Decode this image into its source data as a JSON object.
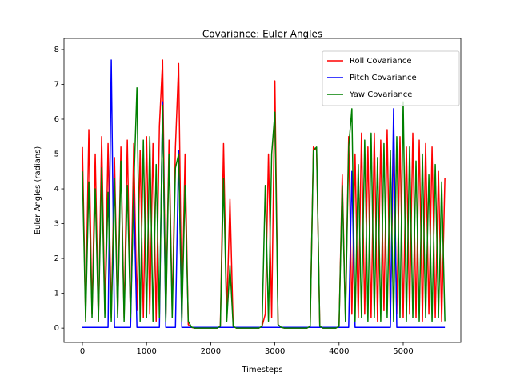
{
  "chart_data": {
    "type": "line",
    "title": "Covariance: Euler Angles",
    "xlabel": "Timesteps",
    "ylabel": "Euler Angles (radians)",
    "x": [
      0,
      50,
      100,
      150,
      200,
      250,
      300,
      350,
      400,
      450,
      500,
      550,
      600,
      650,
      700,
      750,
      800,
      850,
      900,
      950,
      1000,
      1050,
      1100,
      1150,
      1200,
      1250,
      1300,
      1350,
      1400,
      1450,
      1500,
      1550,
      1600,
      1650,
      1700,
      1750,
      1800,
      1850,
      1900,
      1950,
      2000,
      2050,
      2100,
      2150,
      2200,
      2250,
      2300,
      2350,
      2400,
      2450,
      2500,
      2550,
      2600,
      2650,
      2700,
      2750,
      2800,
      2850,
      2900,
      2950,
      3000,
      3050,
      3100,
      3150,
      3200,
      3250,
      3300,
      3350,
      3400,
      3450,
      3500,
      3550,
      3600,
      3650,
      3700,
      3750,
      3800,
      3850,
      3900,
      3950,
      4000,
      4050,
      4100,
      4150,
      4200,
      4250,
      4300,
      4350,
      4400,
      4450,
      4500,
      4550,
      4600,
      4650,
      4700,
      4750,
      4800,
      4850,
      4900,
      4950,
      5000,
      5050,
      5100,
      5150,
      5200,
      5250,
      5300,
      5350,
      5400,
      5450,
      5500,
      5550,
      5600,
      5650
    ],
    "series": [
      {
        "name": "Roll Covariance",
        "color": "#ff0000",
        "values": [
          5.2,
          0.3,
          5.7,
          0.4,
          5.0,
          0.2,
          5.5,
          0.5,
          5.3,
          0.3,
          4.9,
          0.4,
          5.2,
          0.3,
          5.4,
          0.2,
          5.3,
          0.5,
          5.1,
          0.3,
          5.5,
          0.4,
          5.3,
          0.2,
          5.8,
          7.7,
          0.3,
          5.4,
          0.5,
          5.2,
          7.6,
          0.3,
          5.0,
          0.1,
          0.02,
          0,
          0,
          0,
          0,
          0,
          0,
          0,
          0,
          0.05,
          5.3,
          0.4,
          3.7,
          0.05,
          0,
          0,
          0,
          0,
          0,
          0,
          0,
          0,
          0.05,
          0.4,
          5.0,
          0.3,
          7.1,
          0.1,
          0.02,
          0,
          0,
          0,
          0,
          0,
          0,
          0,
          0,
          0.05,
          5.2,
          5.1,
          0.05,
          0,
          0,
          0,
          0,
          0,
          0.05,
          4.4,
          0.3,
          5.5,
          0.4,
          5.0,
          0.3,
          5.6,
          0.4,
          5.2,
          0.3,
          5.6,
          0.2,
          5.4,
          0.5,
          5.7,
          0.3,
          5.3,
          0.4,
          5.5,
          0.3,
          5.2,
          0.4,
          5.6,
          0.3,
          5.4,
          0.2,
          5.3,
          0.4,
          5.2,
          0.3,
          4.5,
          0.2,
          4.3
        ]
      },
      {
        "name": "Pitch Covariance",
        "color": "#0000ff",
        "values": [
          0.02,
          0.02,
          0.02,
          0.02,
          0.02,
          0.02,
          0.02,
          0.02,
          0.02,
          7.7,
          0.02,
          0.02,
          0.02,
          0.02,
          0.02,
          0.02,
          4.0,
          0.02,
          0.02,
          0.02,
          0.02,
          0.02,
          0.02,
          0.02,
          0.02,
          6.5,
          0.02,
          0.02,
          0.02,
          0.02,
          5.1,
          0.02,
          0.02,
          0.02,
          0.02,
          0.02,
          0.02,
          0.02,
          0.02,
          0.02,
          0.02,
          0.02,
          0.02,
          0.02,
          0.02,
          0.02,
          0.02,
          0.02,
          0.02,
          0.02,
          0.02,
          0.02,
          0.02,
          0.02,
          0.02,
          0.02,
          0.02,
          0.02,
          0.02,
          0.02,
          0.02,
          0.02,
          0.02,
          0.02,
          0.02,
          0.02,
          0.02,
          0.02,
          0.02,
          0.02,
          0.02,
          0.02,
          0.02,
          0.02,
          0.02,
          0.02,
          0.02,
          0.02,
          0.02,
          0.02,
          0.02,
          0.02,
          0.02,
          0.02,
          4.5,
          0.02,
          0.02,
          0.02,
          0.02,
          0.02,
          0.02,
          0.02,
          0.02,
          0.02,
          0.02,
          0.02,
          0.02,
          6.3,
          0.02,
          0.02,
          0.02,
          0.02,
          0.02,
          0.02,
          0.02,
          0.02,
          0.02,
          0.02,
          0.02,
          0.02,
          0.02,
          0.02,
          0.02,
          0.02
        ]
      },
      {
        "name": "Yaw Covariance",
        "color": "#008000",
        "values": [
          4.5,
          0.2,
          4.2,
          0.3,
          4.0,
          0.2,
          4.6,
          0.3,
          3.9,
          0.2,
          4.3,
          0.3,
          4.8,
          0.2,
          4.1,
          0.3,
          4.0,
          6.9,
          0.2,
          5.4,
          0.3,
          5.5,
          0.2,
          4.7,
          0.3,
          6.4,
          0.2,
          5.0,
          0.3,
          4.6,
          5.0,
          0.2,
          4.1,
          0.2,
          0.03,
          0,
          0,
          0,
          0,
          0,
          0,
          0,
          0,
          0.05,
          4.3,
          0.2,
          1.8,
          0.05,
          0,
          0,
          0,
          0,
          0,
          0,
          0,
          0,
          0.05,
          4.1,
          0.2,
          5.0,
          6.2,
          0.1,
          0.02,
          0,
          0,
          0,
          0,
          0,
          0,
          0,
          0,
          0.05,
          5.1,
          5.2,
          0.05,
          0,
          0,
          0,
          0,
          0,
          0.05,
          4.1,
          0.2,
          5.2,
          6.3,
          0.2,
          4.7,
          0.3,
          5.4,
          0.2,
          5.6,
          0.3,
          4.9,
          0.2,
          5.3,
          0.3,
          5.1,
          0.2,
          5.5,
          0.3,
          6.5,
          0.2,
          5.2,
          0.3,
          4.8,
          0.2,
          5.0,
          0.3,
          4.4,
          0.2,
          4.7,
          0.3,
          4.2,
          0.2
        ]
      }
    ],
    "xlim": [
      -287,
      5898
    ],
    "xticks": [
      0,
      1000,
      2000,
      3000,
      4000,
      5000
    ],
    "ylim": [
      -0.41,
      8.32
    ],
    "yticks": [
      0,
      1,
      2,
      3,
      4,
      5,
      6,
      7,
      8
    ],
    "legend": "upper right",
    "grid": false
  }
}
